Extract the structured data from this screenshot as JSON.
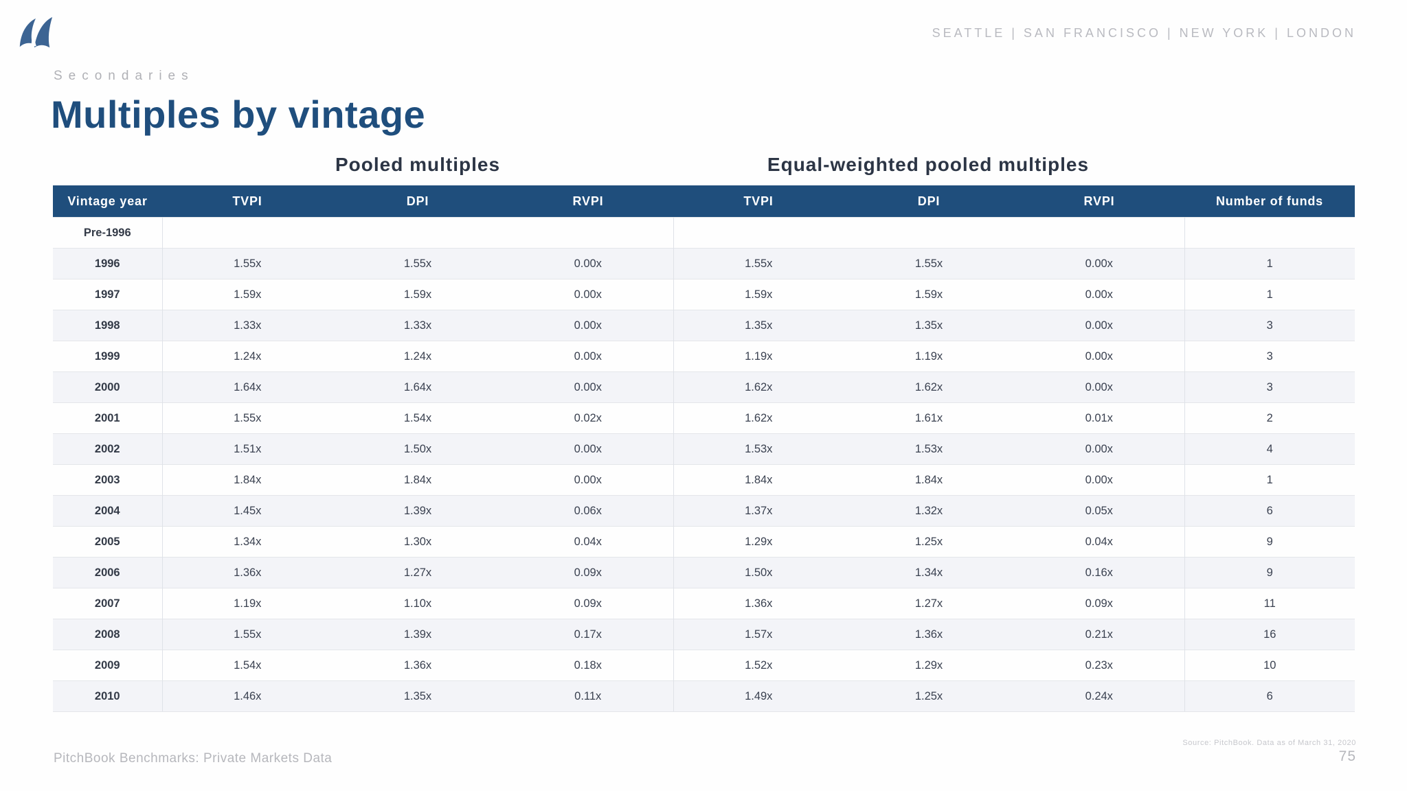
{
  "brand": {
    "logo_icon": "two-sails-logo",
    "locations": [
      "SEATTLE",
      "SAN FRANCISCO",
      "NEW YORK",
      "LONDON"
    ],
    "locations_separator": "  |  "
  },
  "header": {
    "eyebrow": "Secondaries",
    "title": "Multiples by vintage"
  },
  "table": {
    "group_headers": [
      "Pooled multiples",
      "Equal-weighted pooled multiples"
    ],
    "columns": [
      "Vintage year",
      "TVPI",
      "DPI",
      "RVPI",
      "TVPI",
      "DPI",
      "RVPI",
      "Number of funds"
    ],
    "rows": [
      {
        "vintage": "Pre-1996",
        "pooled": [
          "",
          "",
          ""
        ],
        "equal_weighted": [
          "",
          "",
          ""
        ],
        "funds": ""
      },
      {
        "vintage": "1996",
        "pooled": [
          "1.55x",
          "1.55x",
          "0.00x"
        ],
        "equal_weighted": [
          "1.55x",
          "1.55x",
          "0.00x"
        ],
        "funds": "1"
      },
      {
        "vintage": "1997",
        "pooled": [
          "1.59x",
          "1.59x",
          "0.00x"
        ],
        "equal_weighted": [
          "1.59x",
          "1.59x",
          "0.00x"
        ],
        "funds": "1"
      },
      {
        "vintage": "1998",
        "pooled": [
          "1.33x",
          "1.33x",
          "0.00x"
        ],
        "equal_weighted": [
          "1.35x",
          "1.35x",
          "0.00x"
        ],
        "funds": "3"
      },
      {
        "vintage": "1999",
        "pooled": [
          "1.24x",
          "1.24x",
          "0.00x"
        ],
        "equal_weighted": [
          "1.19x",
          "1.19x",
          "0.00x"
        ],
        "funds": "3"
      },
      {
        "vintage": "2000",
        "pooled": [
          "1.64x",
          "1.64x",
          "0.00x"
        ],
        "equal_weighted": [
          "1.62x",
          "1.62x",
          "0.00x"
        ],
        "funds": "3"
      },
      {
        "vintage": "2001",
        "pooled": [
          "1.55x",
          "1.54x",
          "0.02x"
        ],
        "equal_weighted": [
          "1.62x",
          "1.61x",
          "0.01x"
        ],
        "funds": "2"
      },
      {
        "vintage": "2002",
        "pooled": [
          "1.51x",
          "1.50x",
          "0.00x"
        ],
        "equal_weighted": [
          "1.53x",
          "1.53x",
          "0.00x"
        ],
        "funds": "4"
      },
      {
        "vintage": "2003",
        "pooled": [
          "1.84x",
          "1.84x",
          "0.00x"
        ],
        "equal_weighted": [
          "1.84x",
          "1.84x",
          "0.00x"
        ],
        "funds": "1"
      },
      {
        "vintage": "2004",
        "pooled": [
          "1.45x",
          "1.39x",
          "0.06x"
        ],
        "equal_weighted": [
          "1.37x",
          "1.32x",
          "0.05x"
        ],
        "funds": "6"
      },
      {
        "vintage": "2005",
        "pooled": [
          "1.34x",
          "1.30x",
          "0.04x"
        ],
        "equal_weighted": [
          "1.29x",
          "1.25x",
          "0.04x"
        ],
        "funds": "9"
      },
      {
        "vintage": "2006",
        "pooled": [
          "1.36x",
          "1.27x",
          "0.09x"
        ],
        "equal_weighted": [
          "1.50x",
          "1.34x",
          "0.16x"
        ],
        "funds": "9"
      },
      {
        "vintage": "2007",
        "pooled": [
          "1.19x",
          "1.10x",
          "0.09x"
        ],
        "equal_weighted": [
          "1.36x",
          "1.27x",
          "0.09x"
        ],
        "funds": "11"
      },
      {
        "vintage": "2008",
        "pooled": [
          "1.55x",
          "1.39x",
          "0.17x"
        ],
        "equal_weighted": [
          "1.57x",
          "1.36x",
          "0.21x"
        ],
        "funds": "16"
      },
      {
        "vintage": "2009",
        "pooled": [
          "1.54x",
          "1.36x",
          "0.18x"
        ],
        "equal_weighted": [
          "1.52x",
          "1.29x",
          "0.23x"
        ],
        "funds": "10"
      },
      {
        "vintage": "2010",
        "pooled": [
          "1.46x",
          "1.35x",
          "0.11x"
        ],
        "equal_weighted": [
          "1.49x",
          "1.25x",
          "0.24x"
        ],
        "funds": "6"
      }
    ]
  },
  "footer": {
    "left": "PitchBook Benchmarks: Private Markets Data",
    "source": "Source: PitchBook. Data as of March 31, 2020",
    "page_number": "75"
  },
  "colors": {
    "header_bar": "#1f4e7c",
    "title": "#1f4e7d",
    "logo": "#3c6493",
    "row_stripe": "#f3f4f8",
    "body_text": "#3a4150",
    "muted_gray": "#b6b7bc"
  }
}
